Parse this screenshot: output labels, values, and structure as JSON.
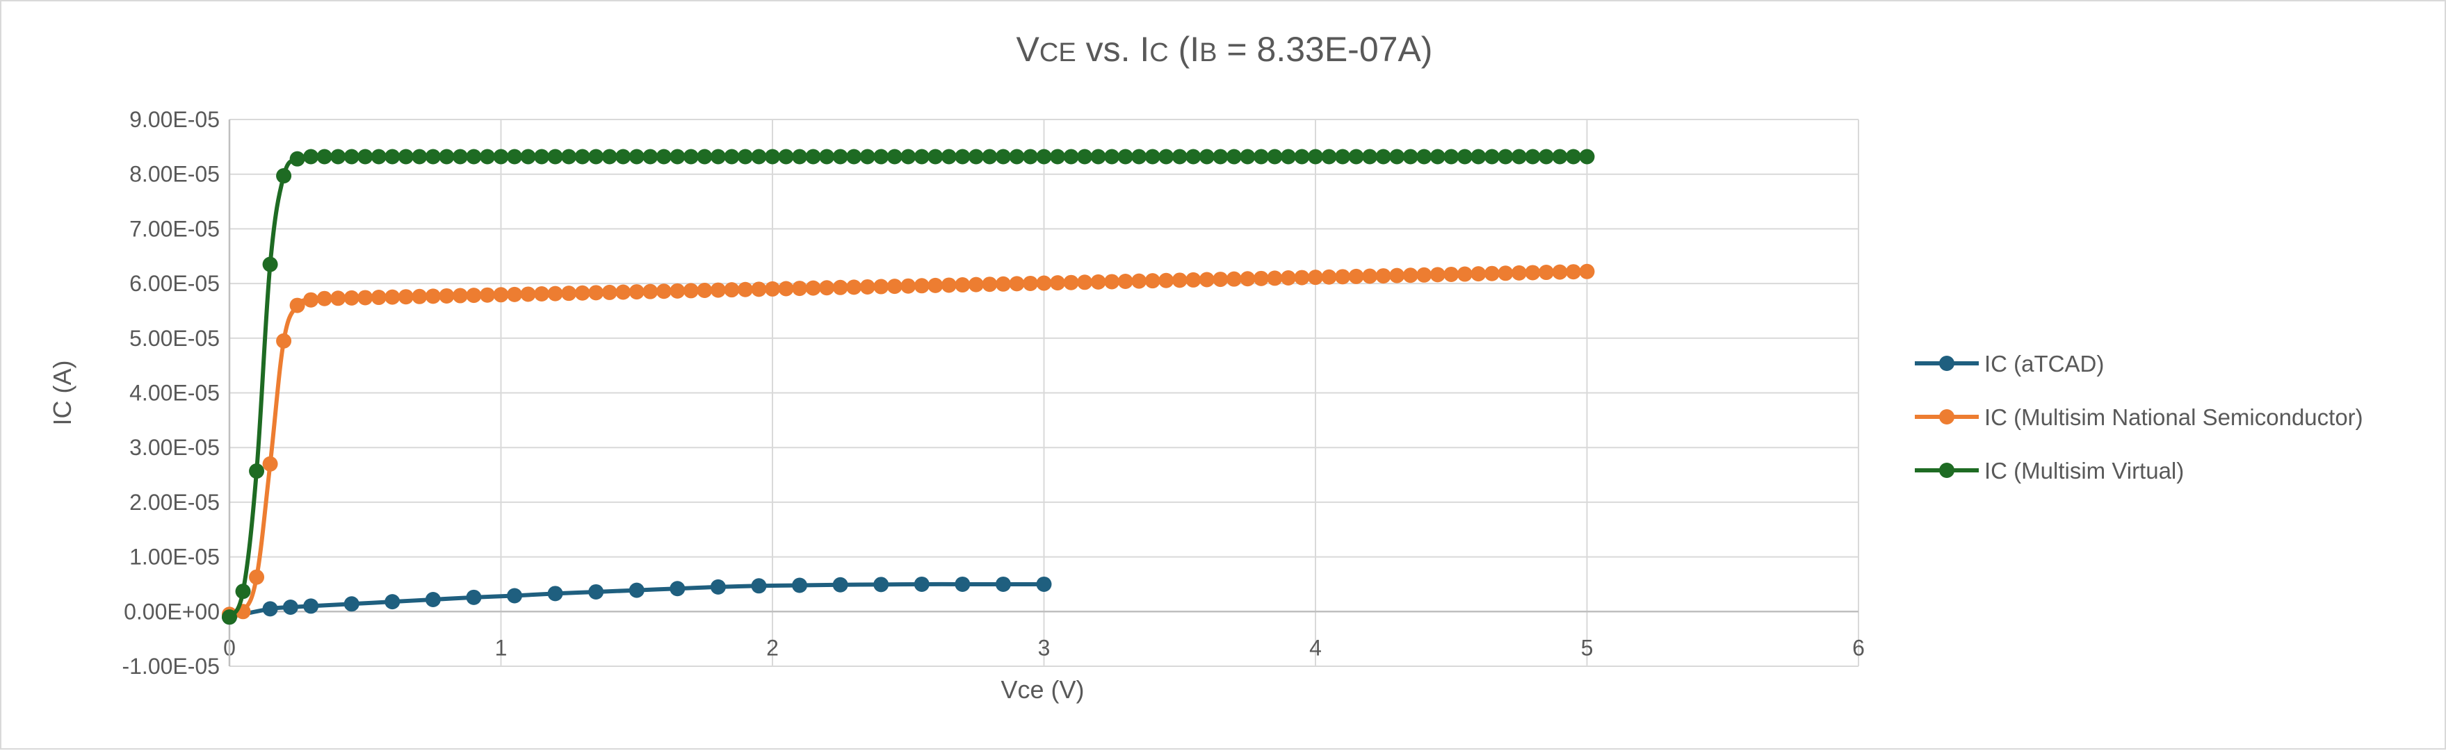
{
  "chart_data": {
    "type": "scatter",
    "title": {
      "parts": [
        {
          "text": "V",
          "small": false
        },
        {
          "text": "CE",
          "small": true
        },
        {
          "text": " vs. I",
          "small": false
        },
        {
          "text": "C",
          "small": true
        },
        {
          "text": " (I",
          "small": false
        },
        {
          "text": "B",
          "small": true
        },
        {
          "text": " = 8.33E-07A)",
          "small": false
        }
      ]
    },
    "xlabel": "Vce (V)",
    "ylabel": "IC (A)",
    "xlim": [
      0,
      6
    ],
    "ylim": [
      -1e-05,
      9e-05
    ],
    "xticks": [
      "0",
      "1",
      "2",
      "3",
      "4",
      "5",
      "6"
    ],
    "yticks": [
      "-1.00E-05",
      "0.00E+00",
      "1.00E-05",
      "2.00E-05",
      "3.00E-05",
      "4.00E-05",
      "5.00E-05",
      "6.00E-05",
      "7.00E-05",
      "8.00E-05",
      "9.00E-05"
    ],
    "grid": true,
    "legend_position": "right",
    "series": [
      {
        "name": "IC (aTCAD)",
        "color": "#1f5f7f",
        "x": [
          0,
          0.15,
          0.225,
          0.3,
          0.45,
          0.6,
          0.75,
          0.9,
          1.05,
          1.2,
          1.35,
          1.5,
          1.65,
          1.8,
          1.95,
          2.1,
          2.25,
          2.4,
          2.55,
          2.7,
          2.85,
          3.0
        ],
        "y": [
          -1e-06,
          5e-07,
          8e-07,
          1e-06,
          1.4e-06,
          1.8e-06,
          2.2e-06,
          2.6e-06,
          2.9e-06,
          3.3e-06,
          3.6e-06,
          3.9e-06,
          4.2e-06,
          4.5e-06,
          4.7e-06,
          4.8e-06,
          4.9e-06,
          4.95e-06,
          5e-06,
          5e-06,
          5e-06,
          5e-06
        ]
      },
      {
        "name": "IC (Multisim National Semiconductor)",
        "color": "#ed7d31",
        "start": 0,
        "step": 0.05,
        "y_head": [
          -5e-07,
          0,
          6.3e-06,
          2.7e-05,
          4.95e-05,
          5.6e-05,
          5.7e-05
        ],
        "y_ramp": {
          "from_x": 0.3,
          "from_y": 5.72e-05,
          "to_x": 5.0,
          "to_y": 6.22e-05
        }
      },
      {
        "name": "IC (Multisim Virtual)",
        "color": "#1e6b23",
        "start": 0,
        "step": 0.05,
        "y_head": [
          -1e-06,
          3.7e-06,
          2.57e-05,
          6.35e-05,
          7.97e-05,
          8.28e-05
        ],
        "y_ramp": {
          "from_x": 0.3,
          "from_y": 8.32e-05,
          "to_x": 5.0,
          "to_y": 8.32e-05
        }
      }
    ]
  }
}
